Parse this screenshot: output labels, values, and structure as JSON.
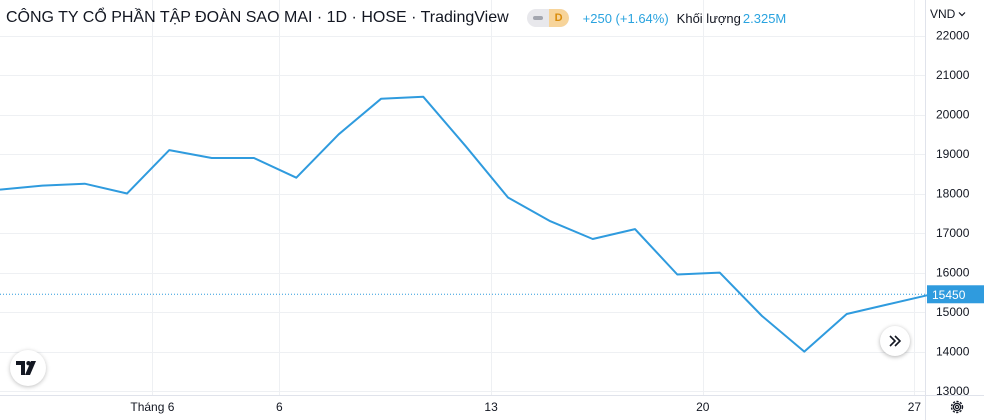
{
  "legend": {
    "title": "CÔNG TY CỔ PHẦN TẬP ĐOÀN SAO MAI · 1D · HOSE · TradingView",
    "status_tag": "D",
    "change": "+250 (+1.64%)",
    "volume_label": "Khối lượng",
    "volume_value": "2.325M"
  },
  "currency": "VND",
  "last_price_label": "15450",
  "colors": {
    "line": "#2f9bde",
    "grid": "#eef0f3",
    "price_badge": "#2f9bde",
    "text": "#131722",
    "axis_text": "#131722",
    "accent_text": "#2aa3df"
  },
  "icons": {
    "logo": "tradingview-logo-icon",
    "scroll": "double-chevron-right-icon",
    "settings": "gear-icon",
    "currency_menu": "chevron-down-icon"
  },
  "chart_data": {
    "type": "line",
    "title": "CÔNG TY CỔ PHẦN TẬP ĐOÀN SAO MAI · 1D · HOSE · TradingView",
    "xlabel": "",
    "ylabel": "",
    "x": [
      0,
      1,
      2,
      3,
      4,
      5,
      6,
      7,
      8,
      9,
      10,
      11,
      12,
      13,
      14,
      15,
      16,
      17,
      18,
      19,
      20,
      21,
      22
    ],
    "series": [
      {
        "values": [
          18100,
          18200,
          18250,
          18000,
          19100,
          18900,
          18900,
          18400,
          19500,
          20400,
          20450,
          19200,
          17900,
          17300,
          16850,
          17100,
          15950,
          16000,
          14900,
          14000,
          14950,
          15200,
          15450
        ]
      }
    ],
    "x_ticks": [
      {
        "x": 3.6,
        "label": "Tháng 6"
      },
      {
        "x": 6.6,
        "label": "6"
      },
      {
        "x": 11.6,
        "label": "13"
      },
      {
        "x": 16.6,
        "label": "20"
      },
      {
        "x": 21.6,
        "label": "27"
      }
    ],
    "y_ticks": [
      13000,
      14000,
      15000,
      16000,
      17000,
      18000,
      19000,
      20000,
      21000,
      22000
    ],
    "xlim": [
      0,
      21.85
    ],
    "ylim": [
      12900,
      22900
    ],
    "last_value": 15450,
    "grid": true,
    "legend": "top-left"
  }
}
